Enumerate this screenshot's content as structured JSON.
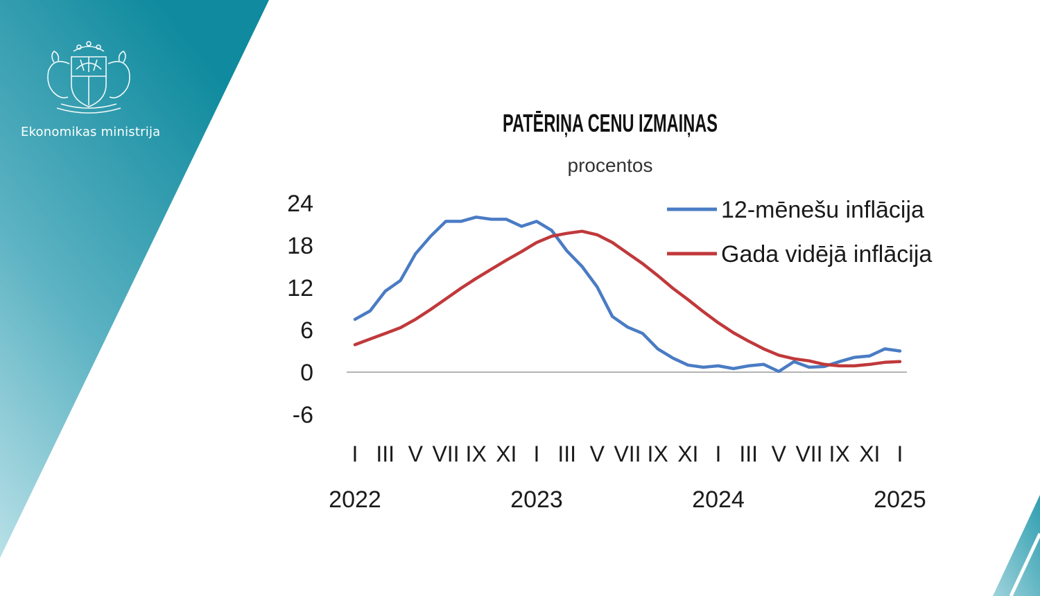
{
  "brand": {
    "ministry_name": "Ekonomikas ministrija",
    "colors": {
      "teal_dark": "#0f8a9e",
      "teal_light": "#a9dbe3",
      "white": "#ffffff"
    },
    "emblem_icon": "coat-of-arms-icon"
  },
  "chart_data": {
    "type": "line",
    "title": "PATĒRIŅA CENU IZMAIŅAS",
    "subtitle": "procentos",
    "xlabel": "",
    "ylabel": "",
    "ylim": [
      -6,
      24
    ],
    "yticks": [
      24,
      18,
      12,
      6,
      0,
      -6
    ],
    "ytick_labels": [
      "24",
      "18",
      "12",
      "6",
      "0",
      "-6"
    ],
    "grid": false,
    "legend_position": "top-right",
    "x": [
      "2022-01",
      "2022-02",
      "2022-03",
      "2022-04",
      "2022-05",
      "2022-06",
      "2022-07",
      "2022-08",
      "2022-09",
      "2022-10",
      "2022-11",
      "2022-12",
      "2023-01",
      "2023-02",
      "2023-03",
      "2023-04",
      "2023-05",
      "2023-06",
      "2023-07",
      "2023-08",
      "2023-09",
      "2023-10",
      "2023-11",
      "2023-12",
      "2024-01",
      "2024-02",
      "2024-03",
      "2024-04",
      "2024-05",
      "2024-06",
      "2024-07",
      "2024-08",
      "2024-09",
      "2024-10",
      "2024-11",
      "2024-12",
      "2025-01"
    ],
    "x_tick_labels": [
      "I",
      "III",
      "V",
      "VII",
      "IX",
      "XI",
      "I",
      "III",
      "V",
      "VII",
      "IX",
      "XI",
      "I",
      "III",
      "V",
      "VII",
      "IX",
      "XI",
      "I"
    ],
    "x_tick_months": [
      "2022-01",
      "2022-03",
      "2022-05",
      "2022-07",
      "2022-09",
      "2022-11",
      "2023-01",
      "2023-03",
      "2023-05",
      "2023-07",
      "2023-09",
      "2023-11",
      "2024-01",
      "2024-03",
      "2024-05",
      "2024-07",
      "2024-09",
      "2024-11",
      "2025-01"
    ],
    "year_labels": [
      "2022",
      "2023",
      "2024",
      "2025"
    ],
    "year_label_months": [
      "2022-01",
      "2023-01",
      "2024-01",
      "2025-01"
    ],
    "series": [
      {
        "name": "12-mēnešu inflācija",
        "color": "#4a7cc4",
        "values": [
          7.5,
          8.7,
          11.5,
          13.0,
          16.8,
          19.3,
          21.4,
          21.4,
          22.0,
          21.7,
          21.7,
          20.7,
          21.4,
          20.1,
          17.2,
          15.0,
          12.1,
          7.9,
          6.4,
          5.5,
          3.3,
          2.0,
          1.0,
          0.7,
          0.9,
          0.5,
          0.9,
          1.1,
          0.1,
          1.5,
          0.7,
          0.8,
          1.5,
          2.1,
          2.3,
          3.3,
          3.0
        ]
      },
      {
        "name": "Gada vidējā inflācija",
        "color": "#c0393b",
        "values": [
          3.9,
          4.7,
          5.5,
          6.3,
          7.5,
          8.9,
          10.4,
          11.9,
          13.3,
          14.6,
          15.9,
          17.1,
          18.4,
          19.3,
          19.7,
          20.0,
          19.5,
          18.4,
          16.9,
          15.4,
          13.7,
          11.9,
          10.3,
          8.6,
          7.0,
          5.6,
          4.4,
          3.3,
          2.4,
          1.9,
          1.6,
          1.1,
          0.9,
          0.9,
          1.1,
          1.4,
          1.5
        ]
      }
    ]
  }
}
